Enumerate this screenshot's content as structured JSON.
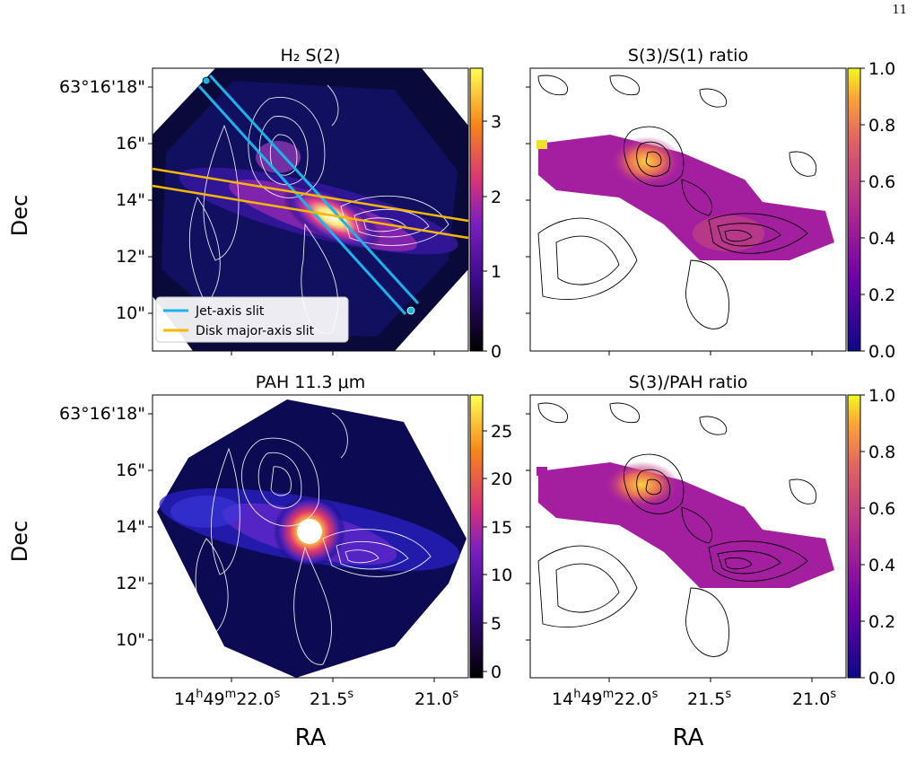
{
  "page_number": "11",
  "figure": {
    "panels": [
      {
        "id": "h2s2",
        "title": "H₂ S(2)",
        "cmap": "gnuplot",
        "cbar_ticks": [
          "0",
          "1",
          "2",
          "3"
        ],
        "contour_color": "#ffffff"
      },
      {
        "id": "s3s1",
        "title": "S(3)/S(1) ratio",
        "cmap": "plasma",
        "cbar_ticks": [
          "0.0",
          "0.2",
          "0.4",
          "0.6",
          "0.8",
          "1.0"
        ],
        "contour_color": "#000000"
      },
      {
        "id": "pah",
        "title": "PAH 11.3 μm",
        "cmap": "gnuplot",
        "cbar_ticks": [
          "0",
          "5",
          "10",
          "15",
          "20",
          "25"
        ],
        "contour_color": "#ffffff"
      },
      {
        "id": "s3pah",
        "title": "S(3)/PAH ratio",
        "cmap": "plasma",
        "cbar_ticks": [
          "0.0",
          "0.2",
          "0.4",
          "0.6",
          "0.8",
          "1.0"
        ],
        "contour_color": "#000000"
      }
    ],
    "dec_ticks": [
      "63°16'18\"",
      "16\"",
      "14\"",
      "12\"",
      "10\""
    ],
    "ra_ticks": [
      "21.5",
      "21.0"
    ],
    "ra_first_tick": {
      "h": "14",
      "m": "49",
      "s": "22.0"
    },
    "ra_units": {
      "h": "h",
      "m": "m",
      "s": "s"
    },
    "ylabel": "Dec",
    "xlabel": "RA",
    "legend": [
      {
        "label": "Jet-axis slit",
        "color": "#1ab4e8"
      },
      {
        "label": "Disk major-axis slit",
        "color": "#f5b800"
      }
    ]
  }
}
